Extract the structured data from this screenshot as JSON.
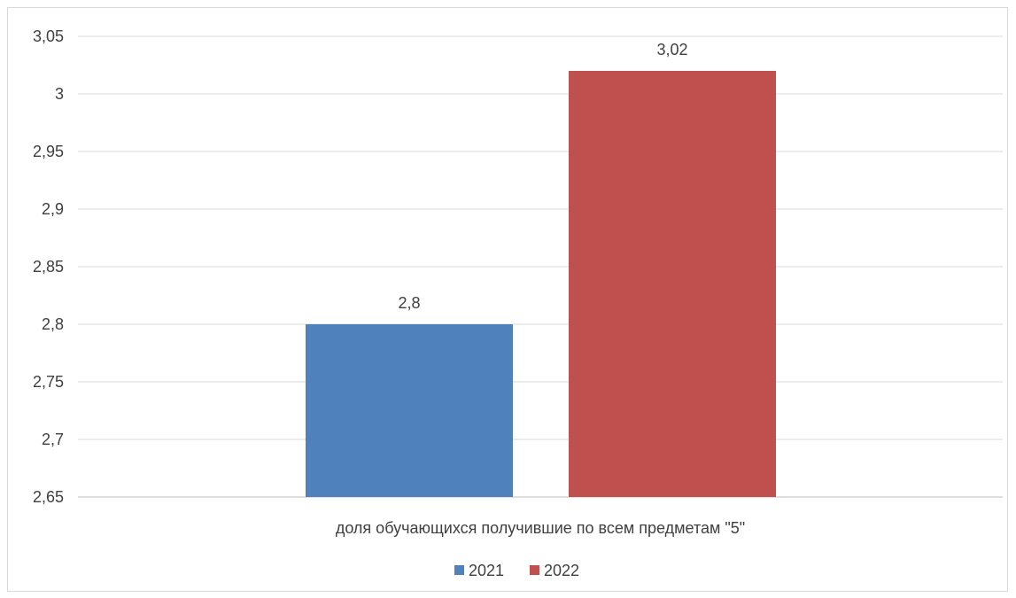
{
  "chart_data": {
    "type": "bar",
    "categories": [
      "доля обучающихся получившие по всем предметам \"5\""
    ],
    "series": [
      {
        "name": "2021",
        "values": [
          2.8
        ],
        "color": "#4f81bd"
      },
      {
        "name": "2022",
        "values": [
          3.02
        ],
        "color": "#c0504d"
      }
    ],
    "ylim": [
      2.65,
      3.05
    ],
    "y_ticks": [
      "2,65",
      "2,7",
      "2,75",
      "2,8",
      "2,85",
      "2,9",
      "2,95",
      "3",
      "3,05"
    ],
    "data_labels": [
      "2,8",
      "3,02"
    ],
    "grid": true,
    "legend_position": "bottom",
    "title": "",
    "xlabel": "",
    "ylabel": ""
  }
}
